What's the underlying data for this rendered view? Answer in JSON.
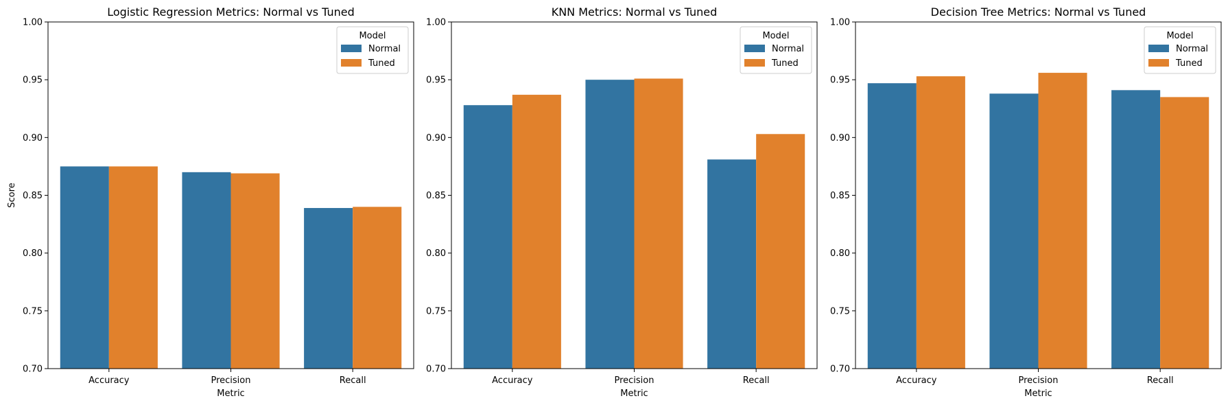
{
  "chart_data": [
    {
      "type": "bar",
      "title": "Logistic Regression Metrics: Normal vs Tuned",
      "xlabel": "Metric",
      "ylabel": "Score",
      "categories": [
        "Accuracy",
        "Precision",
        "Recall"
      ],
      "series": [
        {
          "name": "Normal",
          "values": [
            0.875,
            0.87,
            0.839
          ]
        },
        {
          "name": "Tuned",
          "values": [
            0.875,
            0.869,
            0.84
          ]
        }
      ],
      "ylim": [
        0.7,
        1.0
      ],
      "yticks": [
        "0.70",
        "0.75",
        "0.80",
        "0.85",
        "0.90",
        "0.95",
        "1.00"
      ],
      "legend": {
        "title": "Model",
        "placement": "top-right"
      },
      "grid": false
    },
    {
      "type": "bar",
      "title": "KNN Metrics: Normal vs Tuned",
      "xlabel": "Metric",
      "ylabel": "",
      "categories": [
        "Accuracy",
        "Precision",
        "Recall"
      ],
      "series": [
        {
          "name": "Normal",
          "values": [
            0.928,
            0.95,
            0.881
          ]
        },
        {
          "name": "Tuned",
          "values": [
            0.937,
            0.951,
            0.903
          ]
        }
      ],
      "ylim": [
        0.7,
        1.0
      ],
      "yticks": [
        "0.70",
        "0.75",
        "0.80",
        "0.85",
        "0.90",
        "0.95",
        "1.00"
      ],
      "legend": {
        "title": "Model",
        "placement": "top-right"
      },
      "grid": false
    },
    {
      "type": "bar",
      "title": "Decision Tree Metrics: Normal vs Tuned",
      "xlabel": "Metric",
      "ylabel": "",
      "categories": [
        "Accuracy",
        "Precision",
        "Recall"
      ],
      "series": [
        {
          "name": "Normal",
          "values": [
            0.947,
            0.938,
            0.941
          ]
        },
        {
          "name": "Tuned",
          "values": [
            0.953,
            0.956,
            0.935
          ]
        }
      ],
      "ylim": [
        0.7,
        1.0
      ],
      "yticks": [
        "0.70",
        "0.75",
        "0.80",
        "0.85",
        "0.90",
        "0.95",
        "1.00"
      ],
      "legend": {
        "title": "Model",
        "placement": "top-right"
      },
      "grid": false
    }
  ],
  "colors": {
    "Normal": "#3274a1",
    "Tuned": "#e1812c"
  }
}
